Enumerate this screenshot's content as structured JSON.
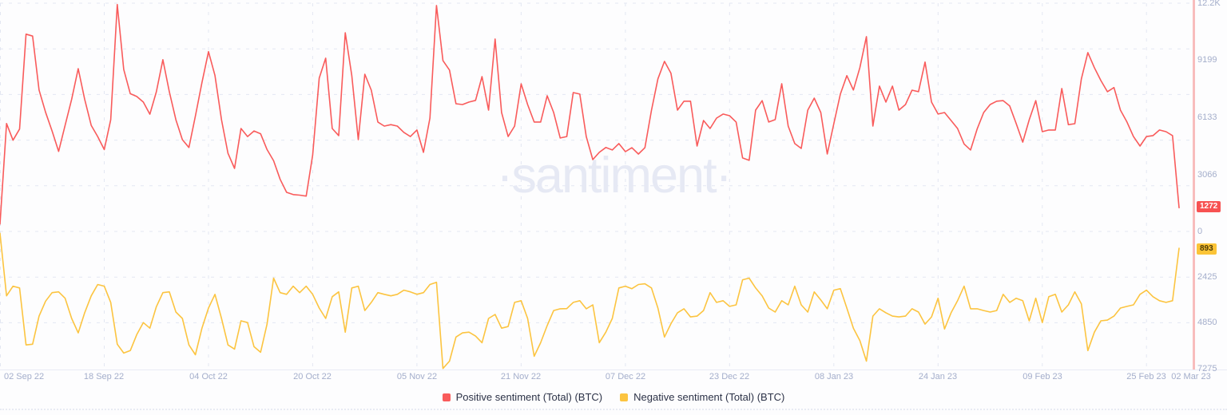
{
  "watermark": "·santiment·",
  "colors": {
    "positive": "#f95b5b",
    "negative": "#fcc440",
    "grid": "#e3e7f2",
    "axis_line": "#e9ebf4",
    "axis_label": "#a4aecb",
    "legend_text": "#2c3247",
    "current_time_line": "#f8bdbd",
    "badge_positive_bg": "#f75252",
    "badge_positive_text": "#ffffff",
    "badge_negative_bg": "#fbc437",
    "badge_negative_text": "#4c3a05",
    "watermark_color": "#e6e9f4"
  },
  "badges": {
    "positive": {
      "text": "1272"
    },
    "negative": {
      "text": "893"
    }
  },
  "legend": [
    {
      "label": "Positive sentiment (Total) (BTC)",
      "color": "#f95b5b"
    },
    {
      "label": "Negative sentiment (Total) (BTC)",
      "color": "#fcc440"
    }
  ],
  "y_axis": {
    "labels": [
      {
        "text": "12.2K",
        "value": 12265,
        "side": "positive"
      },
      {
        "text": "9199",
        "value": 9199,
        "side": "positive"
      },
      {
        "text": "6133",
        "value": 6133,
        "side": "positive"
      },
      {
        "text": "3066",
        "value": 3066,
        "side": "positive"
      },
      {
        "text": "0",
        "value": 0,
        "side": "positive"
      },
      {
        "text": "2425",
        "value": 2425,
        "side": "negative"
      },
      {
        "text": "4850",
        "value": 4850,
        "side": "negative"
      },
      {
        "text": "7275",
        "value": 7275,
        "side": "negative"
      }
    ]
  },
  "x_axis": {
    "labels": [
      "02 Sep 22",
      "18 Sep 22",
      "04 Oct 22",
      "20 Oct 22",
      "05 Nov 22",
      "21 Nov 22",
      "07 Dec 22",
      "23 Dec 22",
      "08 Jan 23",
      "24 Jan 23",
      "09 Feb 23",
      "25 Feb 23",
      "02 Mar 23"
    ]
  },
  "chart_data": {
    "type": "line",
    "title": "",
    "grid": "dashed",
    "legend_position": "bottom-center",
    "x_range": [
      "02 Sep 22",
      "02 Mar 23"
    ],
    "x_tick_labels": [
      "02 Sep 22",
      "18 Sep 22",
      "04 Oct 22",
      "20 Oct 22",
      "05 Nov 22",
      "21 Nov 22",
      "07 Dec 22",
      "23 Dec 22",
      "08 Jan 23",
      "24 Jan 23",
      "09 Feb 23",
      "25 Feb 23",
      "02 Mar 23"
    ],
    "y_ticks_positive": [
      "0",
      "3066",
      "6133",
      "9199",
      "12.2K"
    ],
    "y_ticks_negative": [
      "0",
      "2425",
      "4850",
      "7275"
    ],
    "note": "Dual mirrored axes: positive series plotted upward from shared zero line, negative series plotted downward (inverted axis). Values are daily, estimated from pixels.",
    "series": [
      {
        "name": "Positive sentiment (Total) (BTC)",
        "color": "#f95b5b",
        "axis": "top",
        "axis_max": 12265,
        "last_value": 1272,
        "values": [
          400,
          5800,
          4900,
          5500,
          10600,
          10500,
          7600,
          6400,
          5400,
          4300,
          5700,
          7100,
          8750,
          7100,
          5700,
          5100,
          4400,
          6000,
          12190,
          8700,
          7400,
          7250,
          6950,
          6300,
          7500,
          9230,
          7500,
          6000,
          4930,
          4510,
          6200,
          8000,
          9660,
          8380,
          6000,
          4200,
          3390,
          5530,
          5100,
          5400,
          5250,
          4400,
          3800,
          2800,
          2100,
          1980,
          1950,
          1900,
          4100,
          8240,
          9310,
          5530,
          5150,
          10680,
          8370,
          4930,
          8450,
          7590,
          5880,
          5660,
          5740,
          5660,
          5320,
          5100,
          5450,
          4250,
          6090,
          12140,
          9180,
          8670,
          6860,
          6820,
          6950,
          7040,
          8320,
          6520,
          10340,
          6390,
          5100,
          5660,
          7930,
          6820,
          5880,
          5880,
          7290,
          6390,
          5020,
          5100,
          7460,
          7380,
          5100,
          3860,
          4250,
          4510,
          4380,
          4720,
          4290,
          4500,
          4160,
          4500,
          6500,
          8200,
          9140,
          8500,
          6520,
          7000,
          7000,
          4590,
          5960,
          5530,
          6090,
          6310,
          6220,
          5880,
          3950,
          3820,
          6520,
          7030,
          5880,
          6010,
          7940,
          5660,
          4720,
          4460,
          6520,
          7160,
          6390,
          4160,
          5790,
          7380,
          8370,
          7600,
          8800,
          10470,
          5660,
          7810,
          6950,
          7810,
          6520,
          6820,
          7590,
          7510,
          9100,
          6950,
          6310,
          6390,
          5960,
          5530,
          4700,
          4380,
          5500,
          6390,
          6820,
          7000,
          7030,
          6740,
          5800,
          4800,
          6000,
          7030,
          5360,
          5450,
          5450,
          7680,
          5740,
          5790,
          8200,
          9610,
          8800,
          8110,
          7510,
          7730,
          6520,
          5880,
          5100,
          4590,
          5100,
          5150,
          5450,
          5360,
          5150,
          1272
        ]
      },
      {
        "name": "Negative sentiment (Total) (BTC)",
        "color": "#fcc440",
        "axis": "bottom_inverted",
        "axis_max": 7275,
        "last_value": 893,
        "values": [
          100,
          3420,
          2910,
          3000,
          6030,
          5990,
          4500,
          3700,
          3250,
          3210,
          3550,
          4620,
          5390,
          4320,
          3420,
          2820,
          2910,
          3770,
          5990,
          6460,
          6330,
          5480,
          4840,
          5140,
          4000,
          3250,
          3210,
          4280,
          4620,
          6030,
          6550,
          5140,
          4070,
          3340,
          4620,
          6030,
          6250,
          4750,
          4840,
          6120,
          6420,
          4920,
          2480,
          3250,
          3340,
          2910,
          3250,
          2910,
          3340,
          4070,
          4620,
          3470,
          3210,
          5350,
          3000,
          2910,
          4200,
          3770,
          3250,
          3340,
          3420,
          3340,
          3120,
          3210,
          3340,
          3250,
          2820,
          2700,
          7280,
          6890,
          5610,
          5390,
          5350,
          5560,
          5910,
          4620,
          4410,
          5140,
          5050,
          3770,
          3680,
          4620,
          6630,
          5910,
          5000,
          4200,
          4110,
          4100,
          3770,
          3680,
          4110,
          3900,
          5910,
          5350,
          4620,
          3000,
          2910,
          3040,
          2820,
          2780,
          3000,
          4070,
          5610,
          4900,
          4320,
          4110,
          4540,
          4500,
          4200,
          3250,
          3770,
          3680,
          3980,
          3900,
          2570,
          2480,
          3000,
          3420,
          4070,
          4280,
          3680,
          3900,
          2910,
          3900,
          4280,
          3210,
          3640,
          4110,
          3120,
          3040,
          4070,
          5140,
          5800,
          6890,
          4500,
          4110,
          4320,
          4500,
          4540,
          4500,
          4110,
          4280,
          4920,
          4540,
          3550,
          5180,
          4320,
          3680,
          2910,
          4110,
          4110,
          4200,
          4280,
          4200,
          3340,
          3770,
          3550,
          3680,
          4750,
          3550,
          4840,
          3470,
          3340,
          4280,
          3900,
          3210,
          3850,
          6330,
          5350,
          4750,
          4710,
          4500,
          4070,
          3980,
          3900,
          3340,
          3120,
          3470,
          3680,
          3770,
          3680,
          893
        ]
      }
    ]
  }
}
